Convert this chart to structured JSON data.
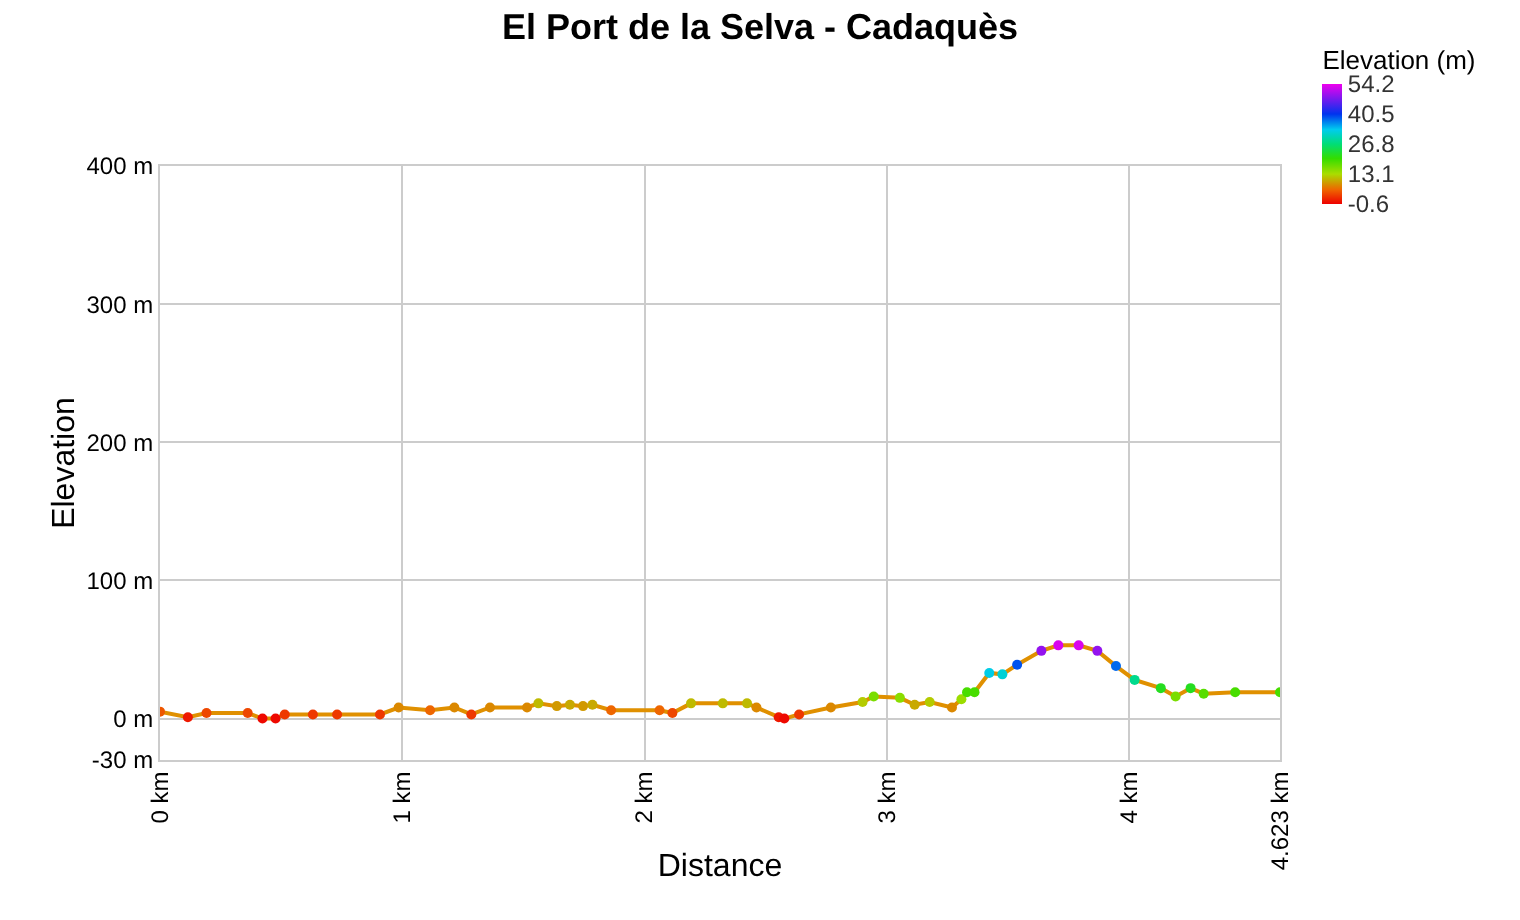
{
  "chart_data": {
    "type": "line",
    "title": "El Port de la Selva - Cadaquès",
    "xlabel": "Distance",
    "ylabel": "Elevation",
    "clabel": "Elevation (m)",
    "x": [
      0,
      0.115,
      0.192,
      0.362,
      0.423,
      0.477,
      0.515,
      0.631,
      0.731,
      0.908,
      0.985,
      1.115,
      1.215,
      1.285,
      1.362,
      1.515,
      1.562,
      1.638,
      1.692,
      1.746,
      1.785,
      1.862,
      2.062,
      2.115,
      2.192,
      2.323,
      2.423,
      2.462,
      2.554,
      2.577,
      2.638,
      2.769,
      2.9,
      2.946,
      3.054,
      3.115,
      3.177,
      3.269,
      3.308,
      3.331,
      3.362,
      3.423,
      3.477,
      3.538,
      3.638,
      3.708,
      3.792,
      3.869,
      3.946,
      4.023,
      4.131,
      4.192,
      4.254,
      4.308,
      4.438,
      4.623
    ],
    "series": [
      {
        "color": "#e09000",
        "values": [
          5,
          1,
          4,
          4,
          0,
          0,
          3,
          3,
          3,
          3,
          8,
          6,
          8,
          3,
          8,
          8,
          11,
          9,
          10,
          9,
          10,
          6,
          6,
          4,
          11,
          11,
          11,
          8,
          1,
          0,
          3,
          8,
          12,
          16,
          15,
          10,
          12,
          8,
          14,
          19,
          19,
          33,
          32,
          39,
          49,
          53,
          53,
          49,
          38,
          28,
          22,
          16,
          22,
          18,
          19,
          19
        ]
      }
    ],
    "xlim": [
      0,
      4.623
    ],
    "xticks": [
      {
        "value": 0,
        "label": "0 km"
      },
      {
        "value": 1,
        "label": "1 km"
      },
      {
        "value": 2,
        "label": "2 km"
      },
      {
        "value": 3,
        "label": "3 km"
      },
      {
        "value": 4,
        "label": "4 km"
      },
      {
        "value": 4.623,
        "label": "4.623 km"
      }
    ],
    "ylim": [
      -30,
      400
    ],
    "yticks": [
      {
        "value": -30,
        "label": "-30 m"
      },
      {
        "value": 0,
        "label": "0 m"
      },
      {
        "value": 100,
        "label": "100 m"
      },
      {
        "value": 200,
        "label": "200 m"
      },
      {
        "value": 300,
        "label": "300 m"
      },
      {
        "value": 400,
        "label": "400 m"
      }
    ],
    "clim": [
      -0.6,
      54.2
    ],
    "cticks": [
      -0.6,
      13.1,
      26.8,
      40.5,
      54.2
    ],
    "grid": true,
    "marker": "circle",
    "line_style": "solid"
  }
}
